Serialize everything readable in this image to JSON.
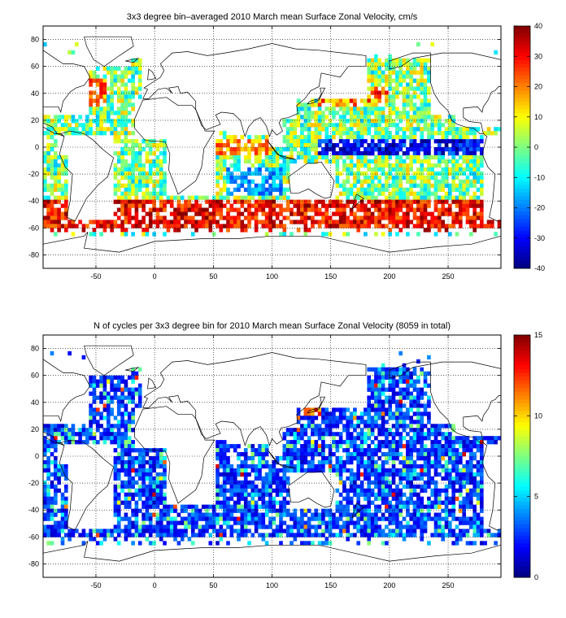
{
  "chart_data": [
    {
      "type": "heatmap",
      "title": "3x3 degree bin–averaged 2010 March mean Surface Zonal Velocity, cm/s",
      "xlim": [
        -95,
        295
      ],
      "ylim": [
        -90,
        90
      ],
      "x_ticks": [
        -50,
        0,
        50,
        100,
        150,
        200,
        250
      ],
      "y_ticks": [
        80,
        60,
        40,
        20,
        0,
        -20,
        -40,
        -60,
        -80
      ],
      "x_tick_labels": [
        "-50",
        "0",
        "50",
        "100",
        "150",
        "200",
        "250"
      ],
      "y_tick_labels": [
        "80",
        "60",
        "40",
        "20",
        "0",
        "-20",
        "-40",
        "-60",
        "-80"
      ],
      "colorbar": {
        "min": -40,
        "max": 40,
        "ticks": [
          40,
          30,
          20,
          10,
          0,
          -10,
          -20,
          -30,
          -40
        ],
        "tick_labels": [
          "40",
          "30",
          "20",
          "10",
          "0",
          "-10",
          "-20",
          "-30",
          "-40"
        ],
        "colormap": "jet"
      },
      "bin_size_deg": 3,
      "grid": "dotted",
      "values_summary": "Eastward (positive) velocities of 20–40 cm/s along the Antarctic Circumpolar Current near 50–60S; westward (negative) velocities of -20 to -40 cm/s along the equatorial Pacific and Indian Oceans; mixed values elsewhere."
    },
    {
      "type": "heatmap",
      "title": "N of cycles per 3x3 degree bin for 2010 March mean Surface Zonal Velocity (8059 in total)",
      "xlim": [
        -95,
        295
      ],
      "ylim": [
        -90,
        90
      ],
      "x_ticks": [
        -50,
        0,
        50,
        100,
        150,
        200,
        250
      ],
      "y_ticks": [
        80,
        60,
        40,
        20,
        0,
        -20,
        -40,
        -60,
        -80
      ],
      "x_tick_labels": [
        "-50",
        "0",
        "50",
        "100",
        "150",
        "200",
        "250"
      ],
      "y_tick_labels": [
        "80",
        "60",
        "40",
        "20",
        "0",
        "-20",
        "-40",
        "-60",
        "-80"
      ],
      "colorbar": {
        "min": 0,
        "max": 15,
        "ticks": [
          15,
          10,
          5,
          0
        ],
        "tick_labels": [
          "15",
          "10",
          "5",
          "0"
        ],
        "colormap": "jet"
      },
      "bin_size_deg": 3,
      "grid": "dotted",
      "total_cycles": 8059,
      "values_summary": "Most ocean bins contain 1–4 cycles; isolated bins reach 8–15 cycles, notably near Japan (~135E, 38N)."
    }
  ]
}
